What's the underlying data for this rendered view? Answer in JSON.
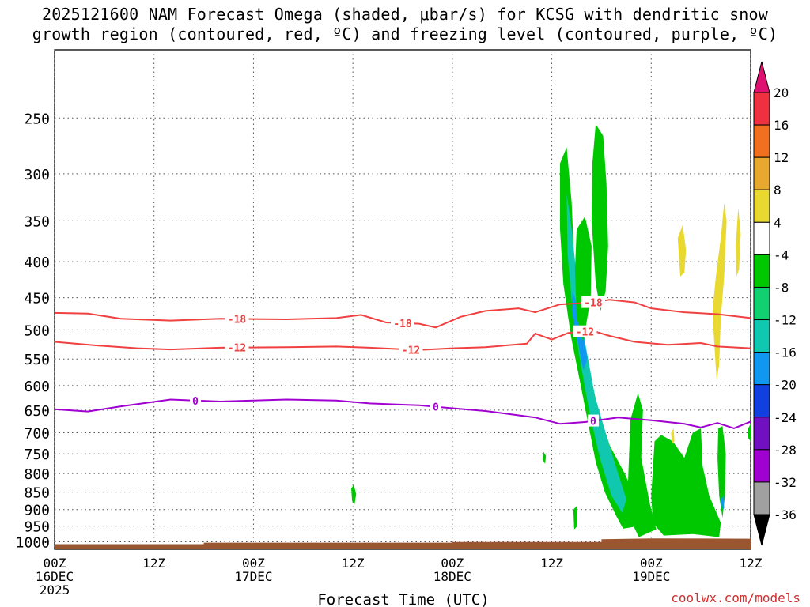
{
  "chart_data": {
    "type": "heatmap",
    "title_line1": "2025121600 NAM Forecast Omega (shaded, μbar/s) for KCSG with dendritic snow",
    "title_line2": "growth region (contoured, red, ºC) and freezing level (contoured, purple, ºC)",
    "xlabel": "Forecast Time (UTC)",
    "credit": "coolwx.com/models",
    "x_range_hours": [
      0,
      84
    ],
    "x_ticks": [
      {
        "h": 0,
        "lines": [
          "00Z",
          "16DEC",
          "2025"
        ]
      },
      {
        "h": 12,
        "lines": [
          "12Z"
        ]
      },
      {
        "h": 24,
        "lines": [
          "00Z",
          "17DEC"
        ]
      },
      {
        "h": 36,
        "lines": [
          "12Z"
        ]
      },
      {
        "h": 48,
        "lines": [
          "00Z",
          "18DEC"
        ]
      },
      {
        "h": 60,
        "lines": [
          "12Z"
        ]
      },
      {
        "h": 72,
        "lines": [
          "00Z",
          "19DEC"
        ]
      },
      {
        "h": 84,
        "lines": [
          "12Z"
        ]
      }
    ],
    "y_ticks_hpa": [
      250,
      300,
      350,
      400,
      450,
      500,
      550,
      600,
      650,
      700,
      750,
      800,
      850,
      900,
      950,
      1000
    ],
    "y_range_hpa": [
      200,
      1025
    ],
    "y_scale": "log-pressure",
    "grid": true,
    "colorbar": {
      "ticks": [
        "20",
        "16",
        "12",
        "8",
        "4",
        "-4",
        "-8",
        "-12",
        "-16",
        "-20",
        "-24",
        "-28",
        "-32",
        "-36"
      ],
      "colors": [
        "#e01070",
        "#ee3040",
        "#f07020",
        "#e8a830",
        "#e8d830",
        "#ffffff",
        "#00c800",
        "#10d070",
        "#10c8b0",
        "#1098f0",
        "#1040e0",
        "#7010c0",
        "#a000d0",
        "#a0a0a0",
        "#000000"
      ]
    },
    "contours": [
      {
        "color": "#f04040",
        "level": "-18",
        "labels_at_h": [
          22,
          42,
          65
        ],
        "points": [
          [
            0,
            473
          ],
          [
            4,
            474
          ],
          [
            8,
            482
          ],
          [
            14,
            485
          ],
          [
            20,
            482
          ],
          [
            28,
            483
          ],
          [
            34,
            481
          ],
          [
            37,
            476
          ],
          [
            40,
            488
          ],
          [
            44,
            490
          ],
          [
            46,
            496
          ],
          [
            49,
            479
          ],
          [
            52,
            470
          ],
          [
            56,
            466
          ],
          [
            58,
            472
          ],
          [
            61,
            460
          ],
          [
            65,
            457
          ],
          [
            67,
            453
          ],
          [
            70,
            457
          ],
          [
            72,
            466
          ],
          [
            76,
            472
          ],
          [
            80,
            475
          ],
          [
            84,
            481
          ]
        ]
      },
      {
        "color": "#f04040",
        "level": "-12",
        "labels_at_h": [
          22,
          43,
          64
        ],
        "points": [
          [
            0,
            520
          ],
          [
            5,
            526
          ],
          [
            10,
            531
          ],
          [
            14,
            533
          ],
          [
            20,
            530
          ],
          [
            28,
            529
          ],
          [
            34,
            528
          ],
          [
            38,
            530
          ],
          [
            44,
            534
          ],
          [
            48,
            531
          ],
          [
            52,
            529
          ],
          [
            57,
            523
          ],
          [
            58,
            506
          ],
          [
            60,
            516
          ],
          [
            62,
            505
          ],
          [
            65,
            502
          ],
          [
            67,
            510
          ],
          [
            70,
            520
          ],
          [
            74,
            525
          ],
          [
            78,
            522
          ],
          [
            80,
            528
          ],
          [
            84,
            531
          ]
        ]
      },
      {
        "color": "#a000d0",
        "level": "0",
        "labels_at_h": [
          17,
          46,
          65
        ],
        "points": [
          [
            0,
            648
          ],
          [
            4,
            653
          ],
          [
            8,
            642
          ],
          [
            14,
            628
          ],
          [
            20,
            632
          ],
          [
            28,
            628
          ],
          [
            34,
            630
          ],
          [
            38,
            636
          ],
          [
            44,
            640
          ],
          [
            48,
            646
          ],
          [
            52,
            652
          ],
          [
            58,
            666
          ],
          [
            61,
            680
          ],
          [
            64,
            676
          ],
          [
            68,
            666
          ],
          [
            72,
            672
          ],
          [
            76,
            680
          ],
          [
            78,
            688
          ],
          [
            80,
            678
          ],
          [
            82,
            690
          ],
          [
            84,
            675
          ]
        ]
      }
    ]
  }
}
